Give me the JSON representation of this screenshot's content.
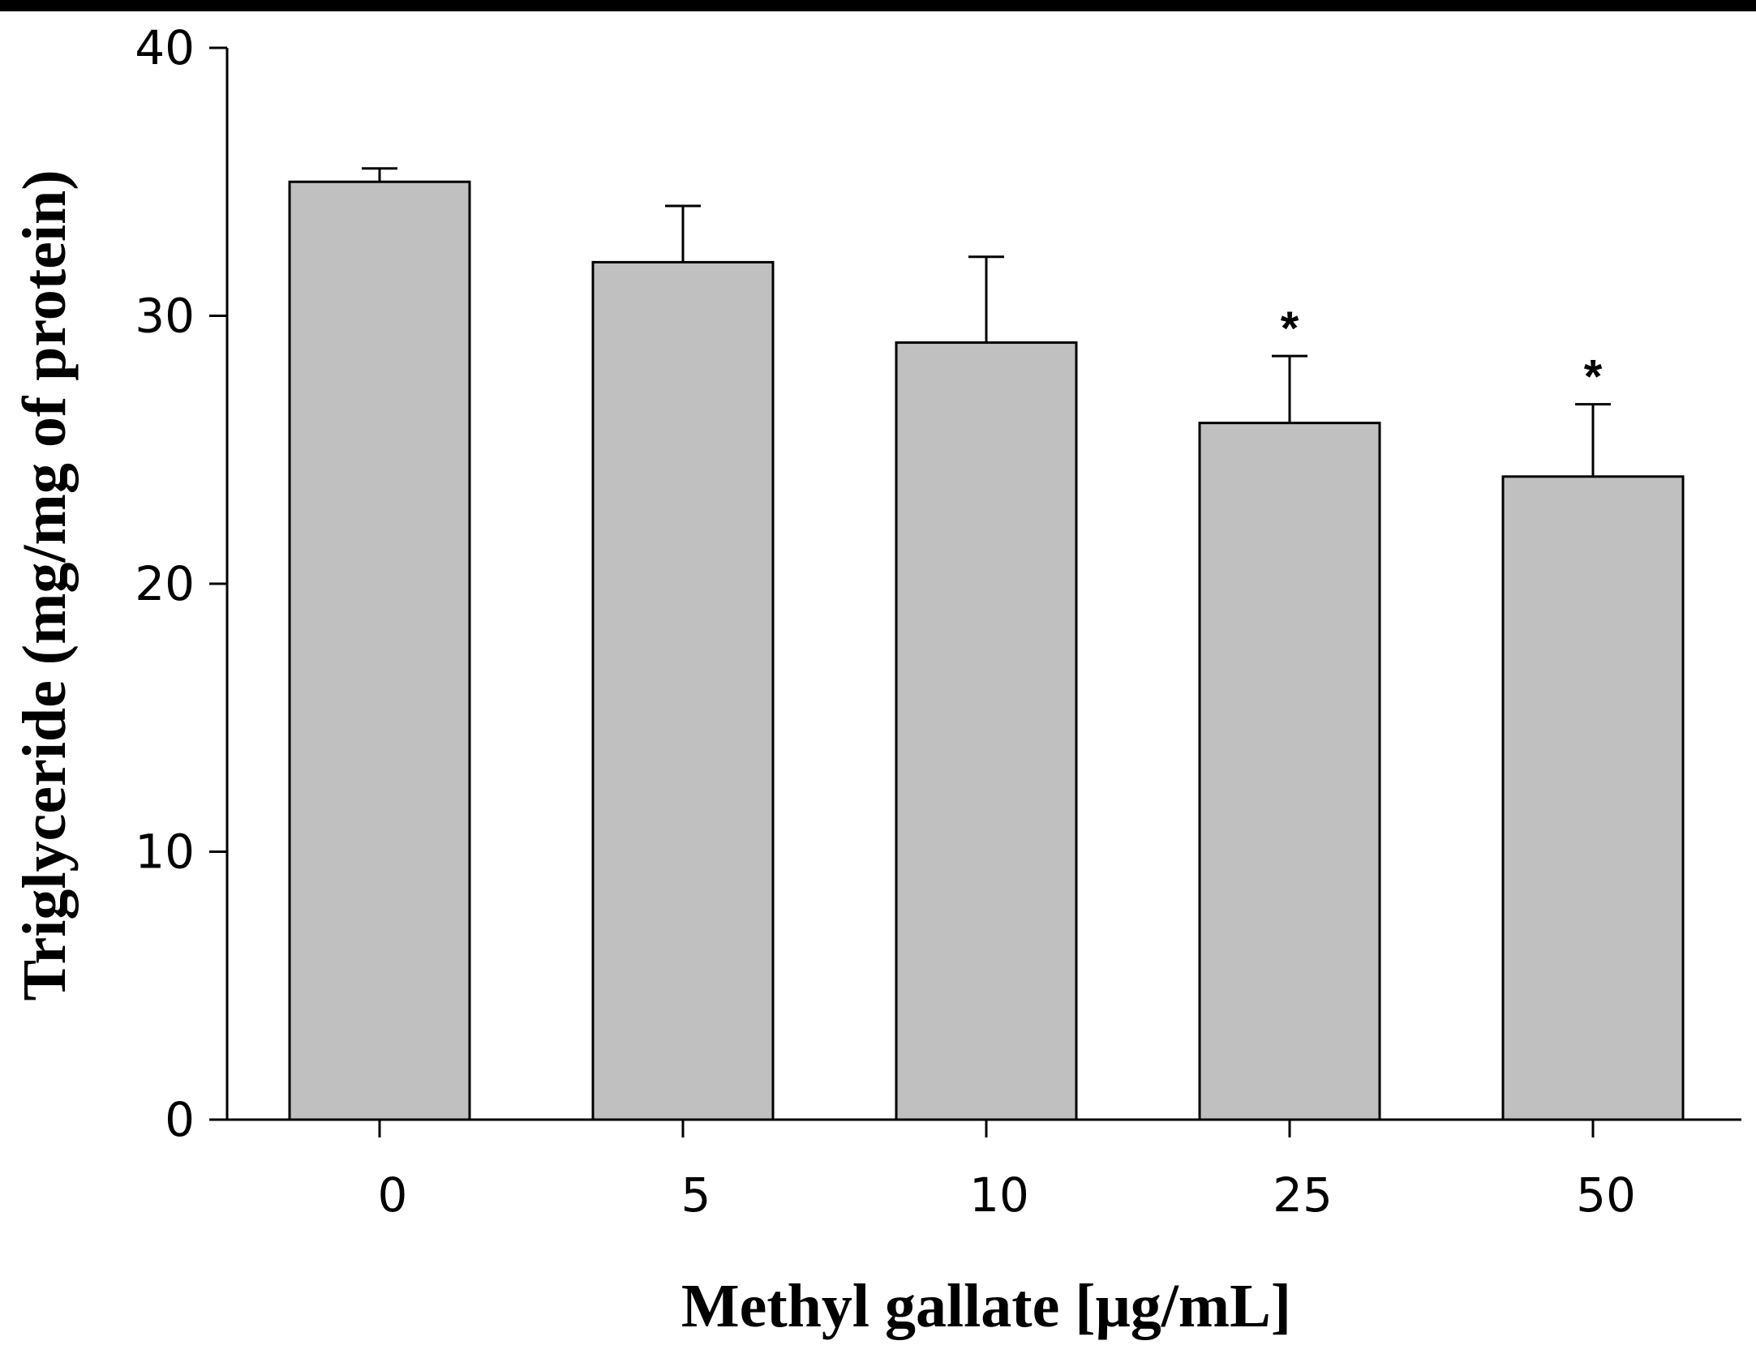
{
  "chart_data": {
    "type": "bar",
    "categories": [
      "0",
      "5",
      "10",
      "25",
      "50"
    ],
    "values": [
      35.0,
      32.0,
      29.0,
      26.0,
      24.0
    ],
    "errors": [
      0.5,
      2.1,
      3.2,
      2.5,
      2.7
    ],
    "significance": [
      "",
      "",
      "",
      "*",
      "*"
    ],
    "xlabel": "Methyl gallate [μg/mL]",
    "ylabel": "Triglyceride (mg/mg of protein)",
    "ylim": [
      0,
      40
    ],
    "yticks": [
      "0",
      "10",
      "20",
      "30",
      "40"
    ],
    "colors": {
      "bar_fill": "#c0c0c0",
      "bar_stroke": "#000000",
      "axis": "#000000"
    }
  }
}
